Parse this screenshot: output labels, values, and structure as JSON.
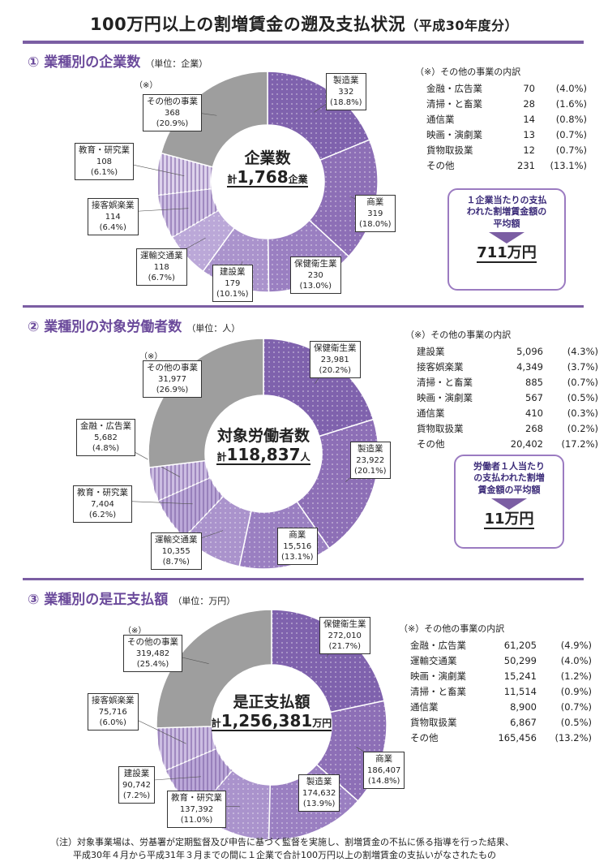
{
  "title": {
    "main": "100万円以上の割増賃金の遡及支払状況",
    "sub": "（平成30年度分）"
  },
  "colors": {
    "accent": "#7b5ea3",
    "segments": [
      "#7f62ad",
      "#8d6fb6",
      "#9a7fc1",
      "#aa93cc",
      "#bba8d8",
      "#ccbde2",
      "#ddd2ec",
      "#e9e2f3",
      "#9e9e9e"
    ]
  },
  "sections": [
    {
      "heading": "① 業種別の企業数",
      "unit": "（単位：企業）",
      "center": {
        "title": "企業数",
        "prefix": "計",
        "total": "1,768",
        "suffix": "企業"
      },
      "note_mark": "（※）",
      "chart_data": {
        "type": "pie",
        "categories": [
          "製造業",
          "商業",
          "保健衛生業",
          "建設業",
          "運輸交通業",
          "接客娯楽業",
          "教育・研究業",
          "その他の事業"
        ],
        "values": [
          332,
          319,
          230,
          179,
          118,
          114,
          108,
          368
        ],
        "value_labels": [
          "332",
          "319",
          "230",
          "179",
          "118",
          "114",
          "108",
          "368"
        ],
        "percent_labels": [
          "(18.8%)",
          "(18.0%)",
          "(13.0%)",
          "(10.1%)",
          "(6.7%)",
          "(6.4%)",
          "(6.1%)",
          "(20.9%)"
        ]
      },
      "breakdown": {
        "title": "（※）その他の事業の内訳",
        "rows": [
          {
            "name": "金融・広告業",
            "value": "70",
            "pct": "(4.0%)"
          },
          {
            "name": "清掃・と畜業",
            "value": "28",
            "pct": "(1.6%)"
          },
          {
            "name": "通信業",
            "value": "14",
            "pct": "(0.8%)"
          },
          {
            "name": "映画・演劇業",
            "value": "13",
            "pct": "(0.7%)"
          },
          {
            "name": "貨物取扱業",
            "value": "12",
            "pct": "(0.7%)"
          },
          {
            "name": "その他",
            "value": "231",
            "pct": "(13.1%)"
          }
        ]
      },
      "average": {
        "label_lines": [
          "１企業当たりの支払",
          "われた割増賃金額の",
          "平均額"
        ],
        "value": "711万円"
      }
    },
    {
      "heading": "② 業種別の対象労働者数",
      "unit": "（単位：人）",
      "center": {
        "title": "対象労働者数",
        "prefix": "計",
        "total": "118,837",
        "suffix": "人"
      },
      "note_mark": "（※）",
      "chart_data": {
        "type": "pie",
        "categories": [
          "保健衛生業",
          "製造業",
          "商業",
          "運輸交通業",
          "教育・研究業",
          "金融・広告業",
          "その他の事業"
        ],
        "values": [
          23981,
          23922,
          15516,
          10355,
          7404,
          5682,
          31977
        ],
        "value_labels": [
          "23,981",
          "23,922",
          "15,516",
          "10,355",
          "7,404",
          "5,682",
          "31,977"
        ],
        "percent_labels": [
          "(20.2%)",
          "(20.1%)",
          "(13.1%)",
          "(8.7%)",
          "(6.2%)",
          "(4.8%)",
          "(26.9%)"
        ]
      },
      "breakdown": {
        "title": "（※）その他の事業の内訳",
        "rows": [
          {
            "name": "建設業",
            "value": "5,096",
            "pct": "(4.3%)"
          },
          {
            "name": "接客娯楽業",
            "value": "4,349",
            "pct": "(3.7%)"
          },
          {
            "name": "清掃・と畜業",
            "value": "885",
            "pct": "(0.7%)"
          },
          {
            "name": "映画・演劇業",
            "value": "567",
            "pct": "(0.5%)"
          },
          {
            "name": "通信業",
            "value": "410",
            "pct": "(0.3%)"
          },
          {
            "name": "貨物取扱業",
            "value": "268",
            "pct": "(0.2%)"
          },
          {
            "name": "その他",
            "value": "20,402",
            "pct": "(17.2%)"
          }
        ]
      },
      "average": {
        "label_lines": [
          "労働者１人当たり",
          "の支払われた割増",
          "賃金額の平均額"
        ],
        "value": "11万円"
      }
    },
    {
      "heading": "③ 業種別の是正支払額",
      "unit": "（単位：万円）",
      "center": {
        "title": "是正支払額",
        "prefix": "計",
        "total": "1,256,381",
        "suffix": "万円"
      },
      "note_mark": "（※）",
      "chart_data": {
        "type": "pie",
        "categories": [
          "保健衛生業",
          "商業",
          "製造業",
          "教育・研究業",
          "建設業",
          "接客娯楽業",
          "その他の事業"
        ],
        "values": [
          272010,
          186407,
          174632,
          137392,
          90742,
          75716,
          319482
        ],
        "value_labels": [
          "272,010",
          "186,407",
          "174,632",
          "137,392",
          "90,742",
          "75,716",
          "319,482"
        ],
        "percent_labels": [
          "(21.7%)",
          "(14.8%)",
          "(13.9%)",
          "(11.0%)",
          "(7.2%)",
          "(6.0%)",
          "(25.4%)"
        ]
      },
      "breakdown": {
        "title": "（※）その他の事業の内訳",
        "rows": [
          {
            "name": "金融・広告業",
            "value": "61,205",
            "pct": "(4.9%)"
          },
          {
            "name": "運輸交通業",
            "value": "50,299",
            "pct": "(4.0%)"
          },
          {
            "name": "映画・演劇業",
            "value": "15,241",
            "pct": "(1.2%)"
          },
          {
            "name": "清掃・と畜業",
            "value": "11,514",
            "pct": "(0.9%)"
          },
          {
            "name": "通信業",
            "value": "8,900",
            "pct": "(0.7%)"
          },
          {
            "name": "貨物取扱業",
            "value": "6,867",
            "pct": "(0.5%)"
          },
          {
            "name": "その他",
            "value": "165,456",
            "pct": "(13.2%)"
          }
        ]
      }
    }
  ],
  "footnote": {
    "lines": [
      "（注）対象事業場は、労基署が定期監督及び申告に基づく監督を実施し、割増賃金の不払に係る指導を行った結果、",
      "平成30年４月から平成31年３月までの間に１企業で合計100万円以上の割増賃金の支払いがなされたもの"
    ]
  }
}
